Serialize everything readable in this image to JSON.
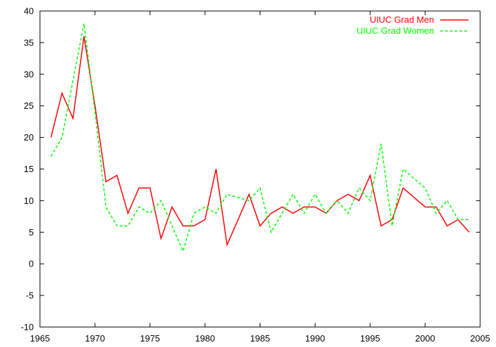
{
  "chart_data": {
    "type": "line",
    "title": "",
    "xlabel": "",
    "ylabel": "",
    "xlim": [
      1965,
      2005
    ],
    "ylim": [
      -10,
      40
    ],
    "xticks": [
      "1965",
      "1970",
      "1975",
      "1980",
      "1985",
      "1990",
      "1995",
      "2000",
      "2005"
    ],
    "yticks": [
      "-10",
      "-5",
      "0",
      "5",
      "10",
      "15",
      "20",
      "25",
      "30",
      "35",
      "40"
    ],
    "grid": false,
    "legend_position": "top-right",
    "series": [
      {
        "name": "UIUC Grad Men",
        "color": "#ff0000",
        "dash": "solid",
        "x": [
          1966,
          1967,
          1968,
          1969,
          1970,
          1971,
          1972,
          1973,
          1974,
          1975,
          1976,
          1977,
          1978,
          1979,
          1980,
          1981,
          1982,
          1983,
          1984,
          1985,
          1986,
          1987,
          1988,
          1989,
          1990,
          1991,
          1992,
          1993,
          1994,
          1995,
          1996,
          1997,
          1998,
          1999,
          2000,
          2001,
          2002,
          2003,
          2004
        ],
        "y": [
          20,
          27,
          23,
          36,
          25,
          13,
          14,
          8,
          12,
          12,
          4,
          9,
          6,
          6,
          7,
          15,
          3,
          7,
          11,
          6,
          8,
          9,
          8,
          9,
          9,
          8,
          10,
          11,
          10,
          14,
          6,
          7,
          12,
          10.5,
          9,
          9,
          6,
          7,
          5
        ]
      },
      {
        "name": "UIUC Grad Women",
        "color": "#00ff00",
        "dash": "dashed",
        "x": [
          1966,
          1967,
          1968,
          1969,
          1970,
          1971,
          1972,
          1973,
          1974,
          1975,
          1976,
          1977,
          1978,
          1979,
          1980,
          1981,
          1982,
          1983,
          1984,
          1985,
          1986,
          1987,
          1988,
          1989,
          1990,
          1991,
          1992,
          1993,
          1994,
          1995,
          1996,
          1997,
          1998,
          1999,
          2000,
          2001,
          2002,
          2003,
          2004
        ],
        "y": [
          17,
          20,
          29,
          38,
          24,
          9,
          6,
          6,
          9,
          8,
          10,
          6,
          2,
          8,
          9,
          8,
          11,
          10.5,
          10,
          12,
          5,
          8,
          11,
          8,
          11,
          8,
          10,
          8,
          12,
          10,
          19,
          6,
          15,
          13.5,
          12,
          8,
          10,
          7,
          7
        ]
      }
    ]
  }
}
